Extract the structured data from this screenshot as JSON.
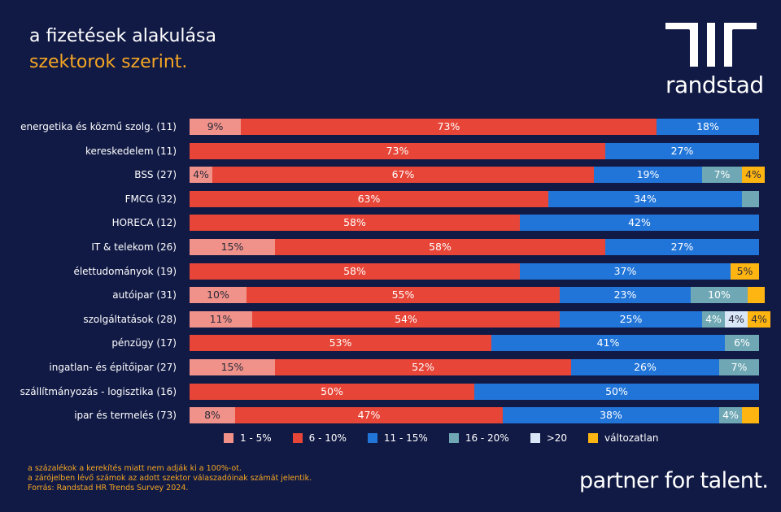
{
  "header": {
    "title_line1": "a fizetések alakulása",
    "title_line2": "szektorok szerint."
  },
  "brand": {
    "name": "randstad",
    "tagline": "partner for talent."
  },
  "notes": [
    "a százalékok a kerekítés miatt nem adják ki a 100%-ot.",
    "a zárójelben lévő számok az adott szektor válaszadóinak számát jelentik.",
    "Forrás: Randstad HR Trends Survey 2024."
  ],
  "chart_data": {
    "type": "bar",
    "orientation": "horizontal",
    "stacked": true,
    "xlim": [
      0,
      100
    ],
    "legend_position": "bottom",
    "categories": [
      "energetika és közmű szolg. (11)",
      "kereskedelem (11)",
      "BSS (27)",
      "FMCG (32)",
      "HORECA (12)",
      "IT & telekom (26)",
      "élettudományok  (19)",
      "autóipar (31)",
      "szolgáltatások (28)",
      "pénzügy (17)",
      "ingatlan- és építőipar (27)",
      "szállítmányozás - logisztika (16)",
      "ipar és termelés (73)"
    ],
    "series": [
      {
        "name": "1 - 5%",
        "color": "#f0928a",
        "text": "#2a2a3a",
        "values": [
          9,
          0,
          4,
          0,
          0,
          15,
          0,
          10,
          11,
          0,
          15,
          0,
          8
        ]
      },
      {
        "name": "6 - 10%",
        "color": "#e64537",
        "text": "#ffffff",
        "values": [
          73,
          73,
          67,
          63,
          58,
          58,
          58,
          55,
          54,
          53,
          52,
          50,
          47
        ]
      },
      {
        "name": "11 - 15%",
        "color": "#2175d9",
        "text": "#ffffff",
        "values": [
          18,
          27,
          19,
          34,
          42,
          27,
          37,
          23,
          25,
          41,
          26,
          50,
          38
        ]
      },
      {
        "name": "16 - 20%",
        "color": "#6fa8b4",
        "text": "#ffffff",
        "values": [
          0,
          0,
          7,
          3,
          0,
          0,
          0,
          10,
          4,
          6,
          7,
          0,
          4
        ]
      },
      {
        "name": ">20",
        "color": "#d9e6f7",
        "text": "#2a2a3a",
        "values": [
          0,
          0,
          0,
          0,
          0,
          0,
          0,
          0,
          4,
          0,
          0,
          0,
          0
        ]
      },
      {
        "name": "változatlan",
        "color": "#ffb511",
        "text": "#2a2a3a",
        "values": [
          0,
          0,
          4,
          0,
          0,
          0,
          5,
          3,
          4,
          0,
          0,
          0,
          3
        ]
      }
    ],
    "unlabeled_below": 4
  }
}
